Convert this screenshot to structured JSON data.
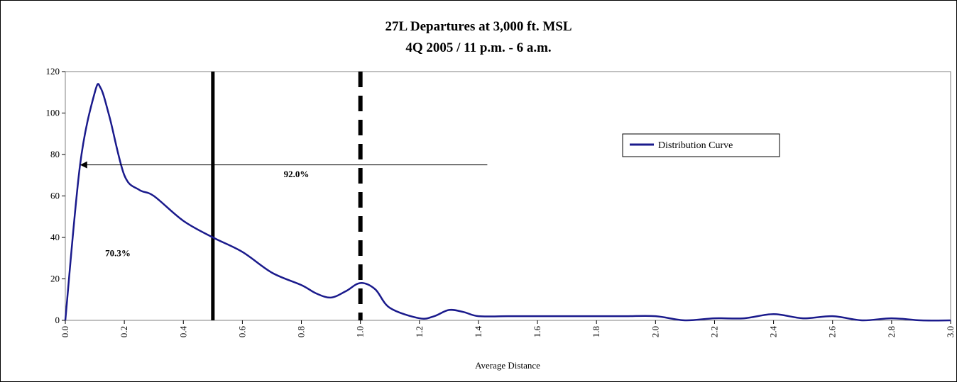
{
  "chart_data": {
    "type": "line",
    "title": "27L Departures at 3,000 ft. MSL",
    "subtitle": "4Q 2005 / 11 p.m. - 6 a.m.",
    "xlabel": "Average Distance",
    "ylabel": "",
    "xlim": [
      0.0,
      3.0
    ],
    "ylim": [
      0,
      120
    ],
    "x_ticks": [
      "0.0",
      "0.2",
      "0.4",
      "0.6",
      "0.8",
      "1.0",
      "1.2",
      "1.4",
      "1.6",
      "1.8",
      "2.0",
      "2.2",
      "2.4",
      "2.6",
      "2.8",
      "3.0"
    ],
    "y_ticks": [
      "0",
      "20",
      "40",
      "60",
      "80",
      "100",
      "120"
    ],
    "grid": false,
    "legend": {
      "position": "right",
      "entries": [
        "Distribution Curve"
      ]
    },
    "series": [
      {
        "name": "Distribution Curve",
        "color": "#1a1a8c",
        "x": [
          0.0,
          0.05,
          0.1,
          0.12,
          0.15,
          0.2,
          0.25,
          0.3,
          0.4,
          0.5,
          0.6,
          0.7,
          0.8,
          0.85,
          0.9,
          0.95,
          1.0,
          1.05,
          1.1,
          1.2,
          1.25,
          1.3,
          1.35,
          1.4,
          1.5,
          1.6,
          1.7,
          1.8,
          1.9,
          2.0,
          2.1,
          2.2,
          2.3,
          2.4,
          2.5,
          2.6,
          2.7,
          2.8,
          2.9,
          3.0
        ],
        "values": [
          0,
          75,
          110,
          112,
          98,
          70,
          63,
          60,
          48,
          40,
          33,
          23,
          17,
          13,
          11,
          14,
          18,
          15,
          6,
          1,
          2,
          5,
          4,
          2,
          2,
          2,
          2,
          2,
          2,
          2,
          0,
          1,
          1,
          3,
          1,
          2,
          0,
          1,
          0,
          0
        ]
      }
    ],
    "annotations": {
      "solid_line_x": 0.5,
      "dashed_line_x": 1.0,
      "arrow": {
        "y": 75,
        "x_start": 1.43,
        "x_end": 0.05
      },
      "labels": [
        {
          "text": "92.0%",
          "x": 0.74,
          "y": 69
        },
        {
          "text": "70.3%",
          "x": 0.135,
          "y": 31
        }
      ]
    }
  }
}
